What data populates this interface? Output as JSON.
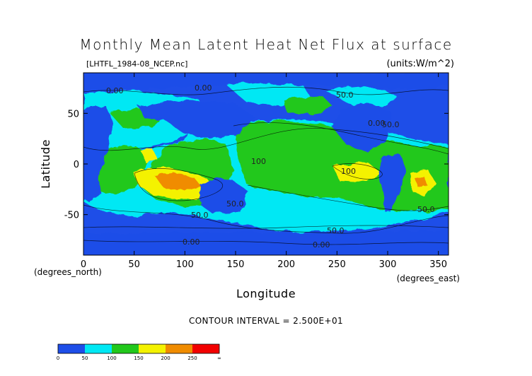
{
  "chart_data": {
    "type": "heatmap",
    "title": "Monthly Mean Latent Heat Net Flux at surface",
    "source_label": "[LHTFL_1984-08_NCEP.nc]",
    "units_label": "(units:W/m^2)",
    "xlabel": "Longitude",
    "ylabel": "Latitude",
    "x_unit_label": "(degrees_east)",
    "y_unit_label": "(degrees_north)",
    "xlim": [
      0,
      360
    ],
    "ylim": [
      -90,
      90
    ],
    "x_ticks": [
      0,
      50,
      100,
      150,
      200,
      250,
      300,
      350
    ],
    "y_ticks": [
      50,
      0,
      -50
    ],
    "contour_interval_label": "CONTOUR INTERVAL = 2.500E+01",
    "contour_labels": [
      "0.00",
      "50.0",
      "100",
      "0.00",
      "50.0",
      "100",
      "50.0",
      "50.0",
      "50.0",
      "0.00",
      "0.00",
      "50.0",
      "0.00"
    ],
    "colorbar": {
      "bins": [
        0,
        50,
        100,
        150,
        200,
        250,
        "∞"
      ],
      "tick_labels": [
        "0",
        "50",
        "100",
        "150",
        "200",
        "250",
        "∞"
      ],
      "colors": [
        "#1e4ee8",
        "#00e8f4",
        "#22c81c",
        "#f4f200",
        "#f08c00",
        "#f20000"
      ]
    }
  }
}
